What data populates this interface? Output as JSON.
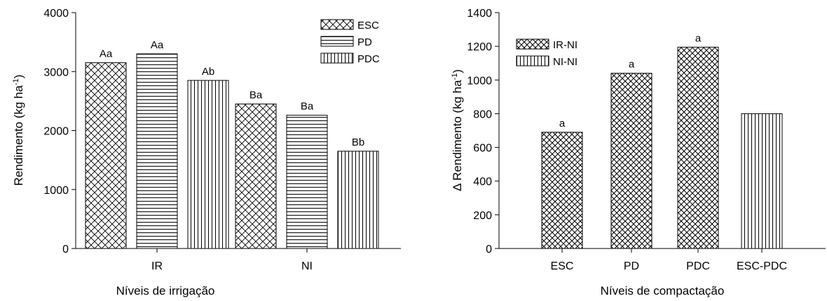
{
  "chart_data": [
    {
      "type": "bar",
      "xlabel": "Níveis de irrigação",
      "ylabel_main": "Rendimento (kg ha",
      "ylabel_sup": "-1",
      "ylabel_end": ")",
      "ylim": [
        0,
        4000
      ],
      "yticks": [
        0,
        1000,
        2000,
        3000,
        4000
      ],
      "categories": [
        "IR",
        "NI"
      ],
      "legend_position": "top-right",
      "series": [
        {
          "name": "ESC",
          "pattern": "crosshatch",
          "values": [
            3150,
            2450
          ],
          "labels": [
            "Aa",
            "Ba"
          ]
        },
        {
          "name": "PD",
          "pattern": "horizontal",
          "values": [
            3300,
            2260
          ],
          "labels": [
            "Aa",
            "Ba"
          ]
        },
        {
          "name": "PDC",
          "pattern": "vertical",
          "values": [
            2850,
            1650
          ],
          "labels": [
            "Ab",
            "Bb"
          ]
        }
      ]
    },
    {
      "type": "bar",
      "xlabel": "Níveis de compactação",
      "ylabel_main": "Δ Rendimento (kg ha",
      "ylabel_sup": "-1",
      "ylabel_end": ")",
      "ylim": [
        0,
        1400
      ],
      "yticks": [
        0,
        200,
        400,
        600,
        800,
        1000,
        1200,
        1400
      ],
      "categories": [
        "ESC",
        "PD",
        "PDC",
        "ESC-PDC"
      ],
      "legend_position": "top-left",
      "legend": [
        {
          "name": "IR-NI",
          "pattern": "crosshatch"
        },
        {
          "name": "NI-NI",
          "pattern": "vertical"
        }
      ],
      "bars": [
        {
          "category": "ESC",
          "value": 690,
          "pattern": "crosshatch",
          "label": "a"
        },
        {
          "category": "PD",
          "value": 1040,
          "pattern": "crosshatch",
          "label": "a"
        },
        {
          "category": "PDC",
          "value": 1195,
          "pattern": "crosshatch",
          "label": "a"
        },
        {
          "category": "ESC-PDC",
          "value": 800,
          "pattern": "vertical",
          "label": ""
        }
      ]
    }
  ]
}
